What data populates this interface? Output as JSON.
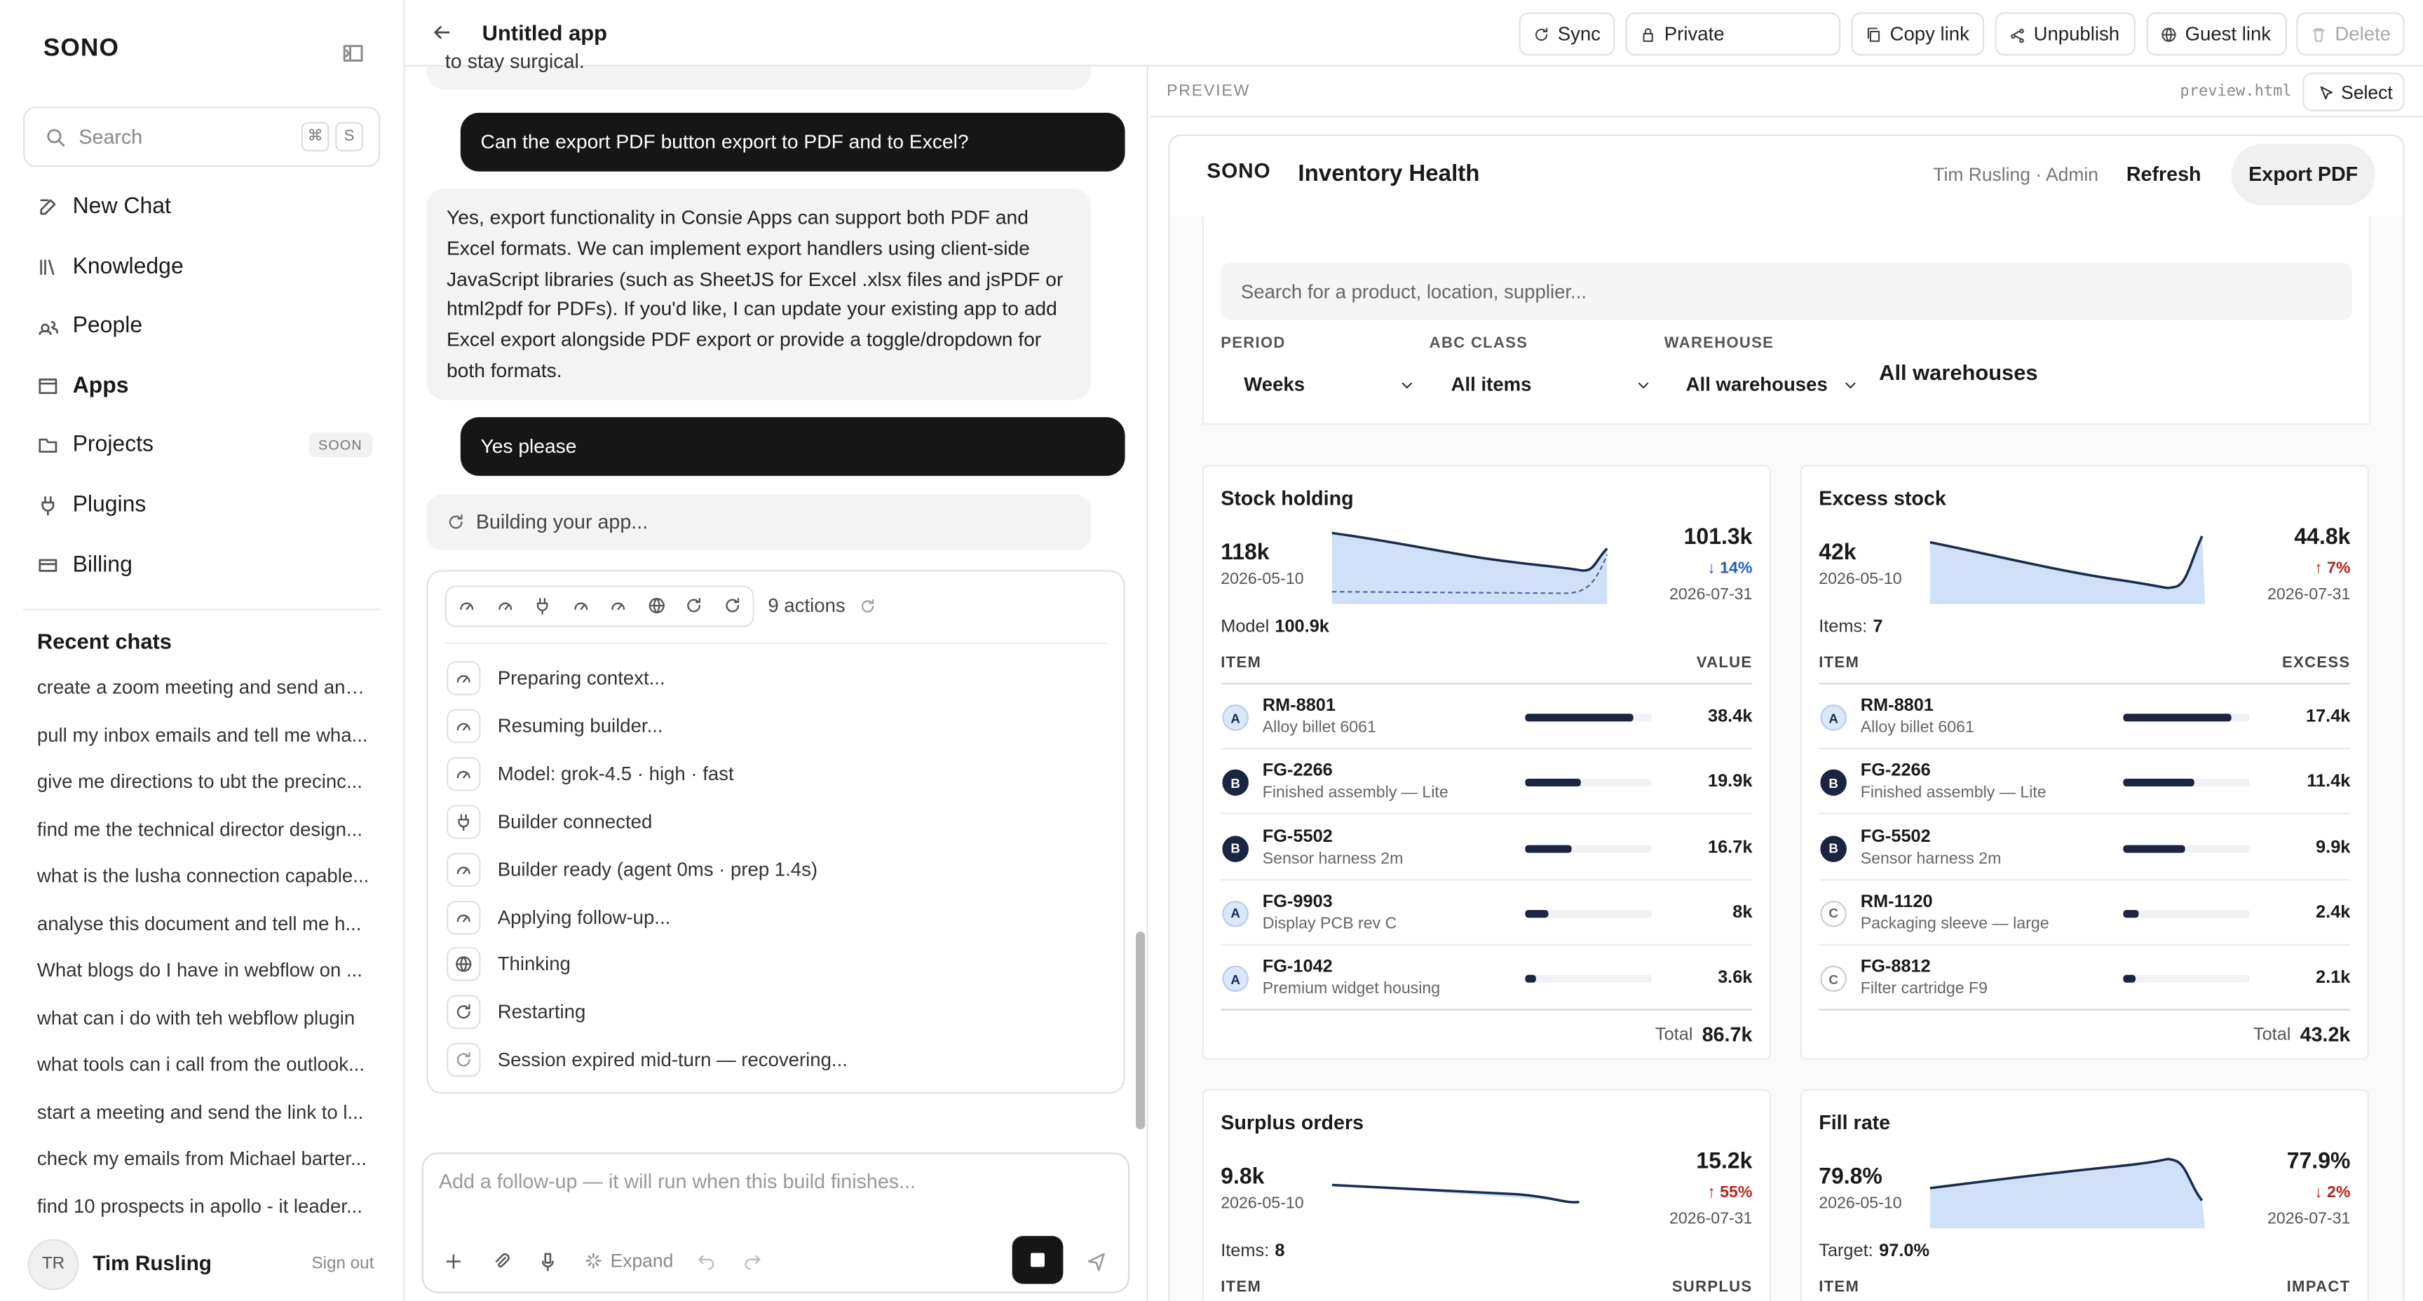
{
  "sidebar": {
    "logo": "SONO",
    "search": "Search",
    "shortcut": [
      "⌘",
      "S"
    ],
    "nav": [
      {
        "label": "New Chat"
      },
      {
        "label": "Knowledge"
      },
      {
        "label": "People"
      },
      {
        "label": "Apps"
      },
      {
        "label": "Projects",
        "badge": "SOON"
      },
      {
        "label": "Plugins"
      },
      {
        "label": "Billing"
      }
    ],
    "recent_title": "Recent chats",
    "recent": [
      "create a zoom meeting and send an i...",
      "pull my inbox emails and tell me wha...",
      "give me directions to ubt the precinc...",
      "find me the technical director design...",
      "what is the lusha connection capable...",
      "analyse this document and tell me h...",
      "What blogs do I have in webflow on ...",
      "what can i do with teh webflow plugin",
      "what tools can i call from the outlook...",
      "start a meeting and send the link to l...",
      "check my emails from Michael barter...",
      "find 10 prospects in apollo - it leader..."
    ],
    "user": {
      "initials": "TR",
      "name": "Tim Rusling",
      "action": "Sign out"
    }
  },
  "header": {
    "title": "Untitled app",
    "buttons": [
      "Sync",
      "Private",
      "Copy link",
      "Unpublish",
      "Guest link",
      "Delete"
    ]
  },
  "chat": {
    "partial": "to stay surgical.",
    "messages": [
      {
        "role": "user",
        "text": "Can the export PDF button export to PDF and to Excel?"
      },
      {
        "role": "assistant",
        "text": "Yes, export functionality in Consie Apps can support both PDF and Excel formats. We can implement export handlers using client-side JavaScript libraries (such as SheetJS for Excel .xlsx files and jsPDF or html2pdf for PDFs). If you'd like, I can update your existing app to add Excel export alongside PDF export or provide a toggle/dropdown for both formats."
      },
      {
        "role": "user",
        "text": "Yes please"
      }
    ],
    "status": "Building your app...",
    "actions_count": "9 actions",
    "steps": [
      "Preparing context...",
      "Resuming builder...",
      "Model: grok-4.5 · high · fast",
      "Builder connected",
      "Builder ready (agent 0ms · prep 1.4s)",
      "Applying follow-up...",
      "Thinking",
      "Restarting",
      "Session expired mid-turn — recovering..."
    ],
    "input_placeholder": "Add a follow-up — it will run when this build finishes...",
    "expand": "Expand"
  },
  "preview": {
    "label": "PREVIEW",
    "file": "preview.html",
    "select": "Select",
    "app": {
      "logo": "SONO",
      "title": "Inventory Health",
      "user": "Tim Rusling · Admin",
      "refresh": "Refresh",
      "export": "Export PDF",
      "search": "Search for a product, location, supplier...",
      "filters": [
        {
          "label": "PERIOD",
          "value": "Weeks"
        },
        {
          "label": "ABC CLASS",
          "value": "All items"
        },
        {
          "label": "WAREHOUSE",
          "value": "All warehouses"
        }
      ],
      "filter_extra": "All warehouses",
      "cards": [
        {
          "title": "Stock holding",
          "start_value": "118k",
          "start_date": "2026-05-10",
          "end_value": "101.3k",
          "change": "↓ 14%",
          "change_color": "#1f5fbf",
          "end_date": "2026-07-31",
          "meta_label": "Model",
          "meta_value": "100.9k",
          "col_item": "ITEM",
          "col_value": "VALUE",
          "items": [
            {
              "tier": "A",
              "code": "RM-8801",
              "name": "Alloy billet 6061",
              "value": 38400,
              "value_label": "38.4k"
            },
            {
              "tier": "B",
              "code": "FG-2266",
              "name": "Finished assembly — Lite",
              "value": 19900,
              "value_label": "19.9k"
            },
            {
              "tier": "B",
              "code": "FG-5502",
              "name": "Sensor harness 2m",
              "value": 16700,
              "value_label": "16.7k"
            },
            {
              "tier": "A",
              "code": "FG-9903",
              "name": "Display PCB rev C",
              "value": 8000,
              "value_label": "8k"
            },
            {
              "tier": "A",
              "code": "FG-1042",
              "name": "Premium widget housing",
              "value": 3600,
              "value_label": "3.6k"
            }
          ],
          "total_label": "Total",
          "total": "86.7k"
        },
        {
          "title": "Excess stock",
          "start_value": "42k",
          "start_date": "2026-05-10",
          "end_value": "44.8k",
          "change": "↑ 7%",
          "change_color": "#b3261e",
          "end_date": "2026-07-31",
          "meta_label": "Items:",
          "meta_value": "7",
          "col_item": "ITEM",
          "col_value": "EXCESS",
          "items": [
            {
              "tier": "A",
              "code": "RM-8801",
              "name": "Alloy billet 6061",
              "value": 17400,
              "value_label": "17.4k"
            },
            {
              "tier": "B",
              "code": "FG-2266",
              "name": "Finished assembly — Lite",
              "value": 11400,
              "value_label": "11.4k"
            },
            {
              "tier": "B",
              "code": "FG-5502",
              "name": "Sensor harness 2m",
              "value": 9900,
              "value_label": "9.9k"
            },
            {
              "tier": "C",
              "code": "RM-1120",
              "name": "Packaging sleeve — large",
              "value": 2400,
              "value_label": "2.4k"
            },
            {
              "tier": "C",
              "code": "FG-8812",
              "name": "Filter cartridge F9",
              "value": 2100,
              "value_label": "2.1k"
            }
          ],
          "total_label": "Total",
          "total": "43.2k"
        },
        {
          "title": "Surplus orders",
          "start_value": "9.8k",
          "start_date": "2026-05-10",
          "end_value": "15.2k",
          "change": "↑ 55%",
          "change_color": "#b3261e",
          "end_date": "2026-07-31",
          "meta_label": "Items:",
          "meta_value": "8",
          "col_item": "ITEM",
          "col_value": "SURPLUS"
        },
        {
          "title": "Fill rate",
          "start_value": "79.8%",
          "start_date": "2026-05-10",
          "end_value": "77.9%",
          "change": "↓ 2%",
          "change_color": "#b3261e",
          "end_date": "2026-07-31",
          "meta_label": "Target:",
          "meta_value": "97.0%",
          "col_item": "ITEM",
          "col_value": "IMPACT"
        }
      ]
    }
  }
}
